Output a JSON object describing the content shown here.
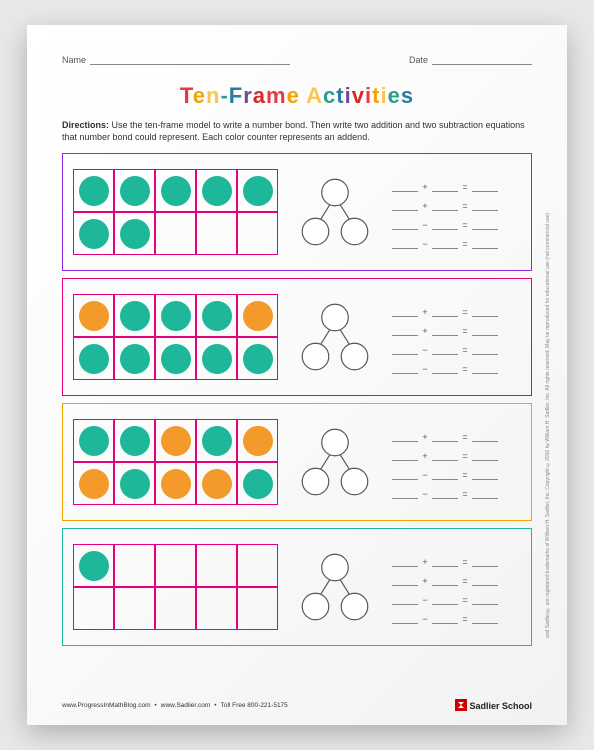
{
  "header": {
    "name_label": "Name",
    "date_label": "Date"
  },
  "title": {
    "word1": "Ten-Frame",
    "word2": "Activities"
  },
  "directions": {
    "label": "Directions:",
    "text": "Use the ten-frame model to write a number bond. Then write two addition and two subtraction equations that number bond could represent. Each color counter represents an addend."
  },
  "colors": {
    "teal": "#1fb79a",
    "orange": "#f39a2b",
    "frame_border": "#e6007e",
    "row_borders": [
      "#8a2be2",
      "#e6007e",
      "#f4a300",
      "#1fb79a"
    ],
    "bond_stroke": "#555555"
  },
  "equations": {
    "ops": [
      "+",
      "+",
      "−",
      "−"
    ],
    "eq": "="
  },
  "rows": [
    {
      "cells": [
        "teal",
        "teal",
        "teal",
        "teal",
        "teal",
        "teal",
        "teal",
        "",
        "",
        ""
      ]
    },
    {
      "cells": [
        "orange",
        "teal",
        "teal",
        "teal",
        "orange",
        "teal",
        "teal",
        "teal",
        "teal",
        "teal"
      ]
    },
    {
      "cells": [
        "teal",
        "teal",
        "orange",
        "teal",
        "orange",
        "orange",
        "teal",
        "orange",
        "orange",
        "teal"
      ]
    },
    {
      "cells": [
        "teal",
        "",
        "",
        "",
        "",
        "",
        "",
        "",
        "",
        ""
      ]
    }
  ],
  "footer": {
    "url1": "www.ProgressInMathBlog.com",
    "url2": "www.Sadlier.com",
    "phone": "Toll Free 800-221-5175",
    "dot": "•",
    "brand": "Sadlier School"
  },
  "side": "and Sadlier® are registered trademarks of William H. Sadlier, Inc.   Copyright ©2016 by William H. Sadlier, Inc. All rights reserved.   May be reproduced for educational use (not commercial use)."
}
